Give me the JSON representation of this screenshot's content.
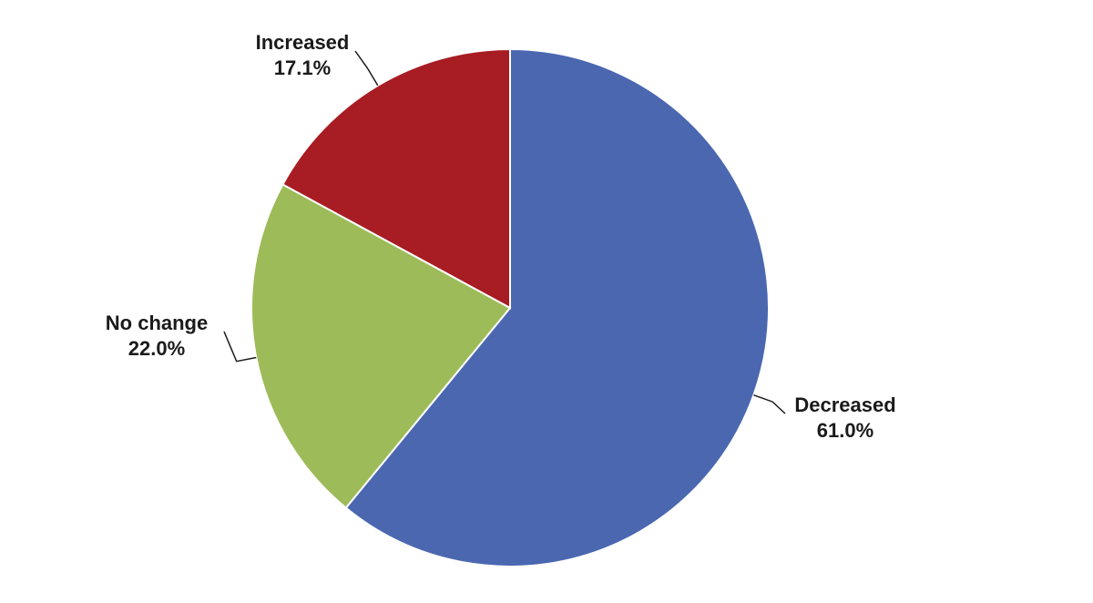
{
  "chart_data": {
    "type": "pie",
    "start_angle_deg": 0,
    "direction": "clockwise",
    "slices": [
      {
        "label": "Decreased",
        "value": 61.0,
        "value_label": "61.0%",
        "color": "#4a67b0"
      },
      {
        "label": "No change",
        "value": 22.0,
        "value_label": "22.0%",
        "color": "#9dbb59"
      },
      {
        "label": "Increased",
        "value": 17.1,
        "value_label": "17.1%",
        "color": "#a81c23"
      }
    ]
  }
}
